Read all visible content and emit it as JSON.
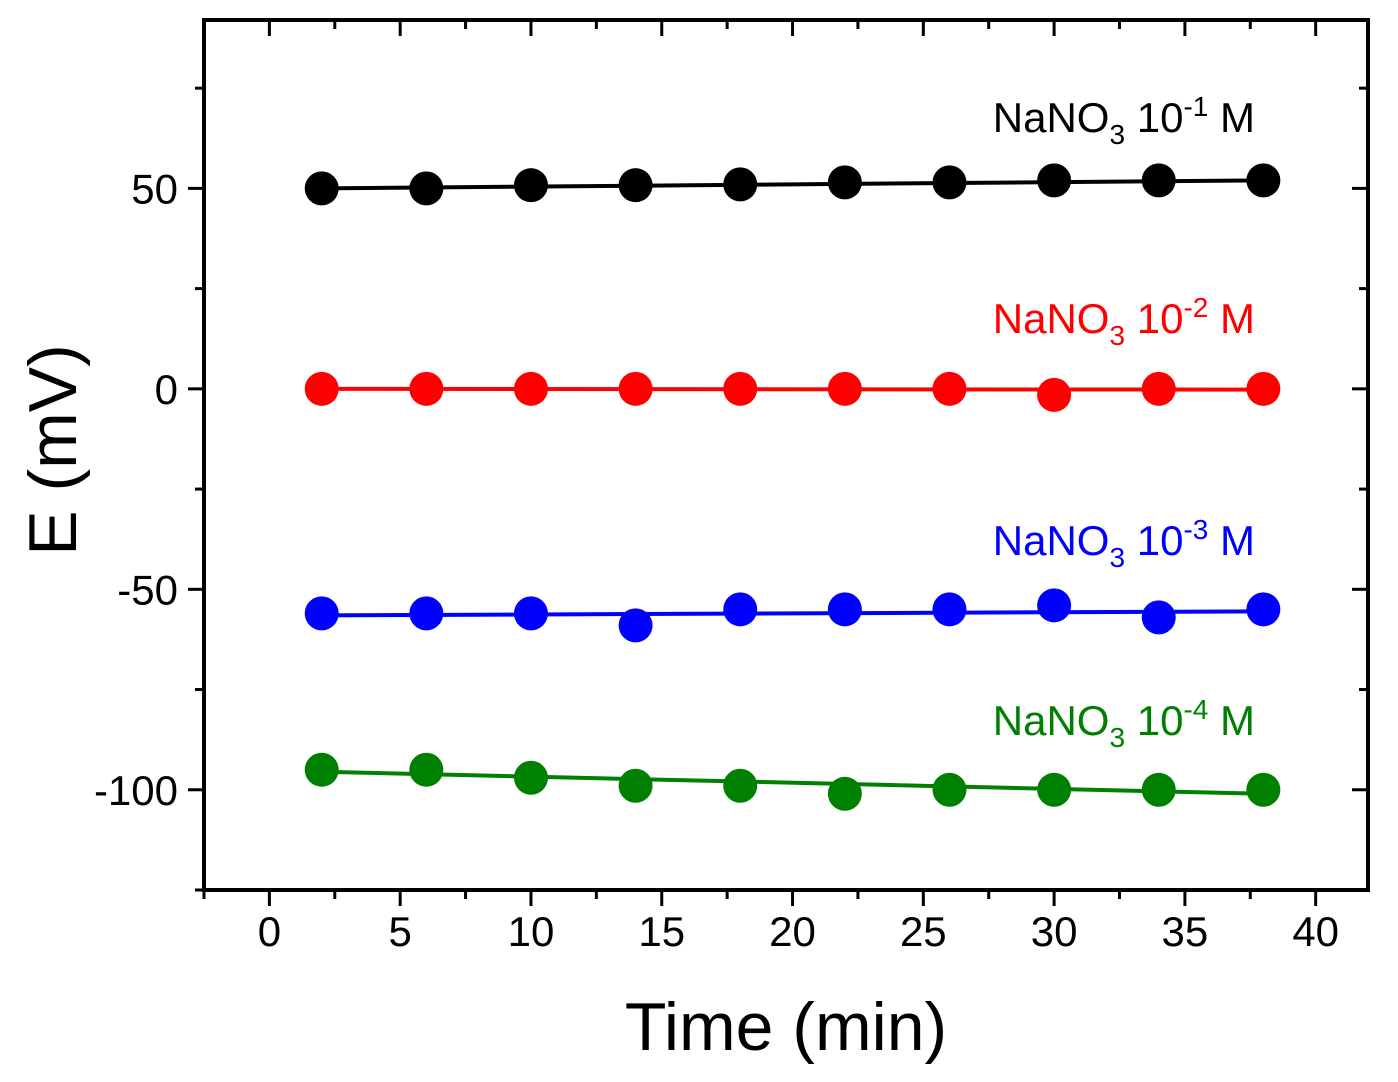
{
  "chart_data": {
    "type": "line",
    "title": "",
    "xlabel": "Time (min)",
    "ylabel": "E (mV)",
    "xlim": [
      -2.5,
      42.0
    ],
    "ylim": [
      -125,
      92
    ],
    "xticks": [
      0,
      5,
      10,
      15,
      20,
      25,
      30,
      35,
      40
    ],
    "xtick_labels": [
      "0",
      "5",
      "10",
      "15",
      "20",
      "25",
      "30",
      "35",
      "40"
    ],
    "yticks": [
      -100,
      -50,
      0,
      50
    ],
    "ytick_labels": [
      "-100",
      "-50",
      "0",
      "50"
    ],
    "x": [
      2,
      6,
      10,
      14,
      18,
      22,
      26,
      30,
      34,
      38
    ],
    "series": [
      {
        "name": "NaNO3 10-1 M",
        "label_parts": {
          "base": "NaNO",
          "sub": "3",
          "mid": " 10",
          "sup": "-1",
          "end": " M"
        },
        "color": "#000000",
        "values": [
          50.0,
          50.0,
          50.8,
          50.8,
          51.0,
          51.5,
          51.5,
          52.0,
          52.0,
          52.0
        ],
        "fit": [
          50.0,
          52.0
        ]
      },
      {
        "name": "NaNO3 10-2 M",
        "label_parts": {
          "base": "NaNO",
          "sub": "3",
          "mid": " 10",
          "sup": "-2",
          "end": " M"
        },
        "color": "#ff0000",
        "values": [
          0.0,
          0.0,
          0.0,
          0.0,
          0.0,
          0.0,
          0.0,
          -1.5,
          0.0,
          0.0
        ],
        "fit": [
          0.0,
          -0.2
        ]
      },
      {
        "name": "NaNO3 10-3 M",
        "label_parts": {
          "base": "NaNO",
          "sub": "3",
          "mid": " 10",
          "sup": "-3",
          "end": " M"
        },
        "color": "#0000ff",
        "values": [
          -56.0,
          -56.0,
          -56.0,
          -59.0,
          -55.0,
          -55.0,
          -55.0,
          -54.0,
          -57.0,
          -55.0
        ],
        "fit": [
          -56.5,
          -55.5
        ]
      },
      {
        "name": "NaNO3 10-4 M",
        "label_parts": {
          "base": "NaNO",
          "sub": "3",
          "mid": " 10",
          "sup": "-4",
          "end": " M"
        },
        "color": "#008000",
        "values": [
          -95.0,
          -95.0,
          -97.0,
          -99.0,
          -99.0,
          -101.0,
          -100.0,
          -100.0,
          -100.0,
          -100.0
        ],
        "fit": [
          -95.5,
          -101.0
        ]
      }
    ],
    "grid": false,
    "legend": "inline-right"
  }
}
